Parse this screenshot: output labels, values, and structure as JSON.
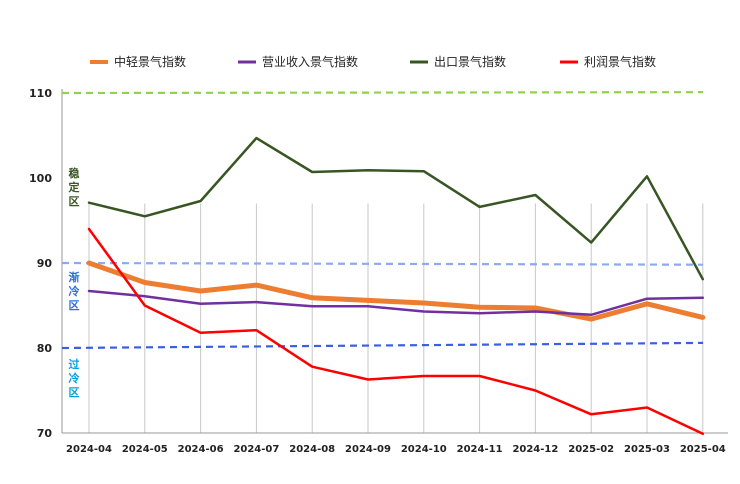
{
  "chart_data": {
    "type": "line",
    "categories": [
      "2024-04",
      "2024-05",
      "2024-06",
      "2024-07",
      "2024-08",
      "2024-09",
      "2024-10",
      "2024-11",
      "2024-12",
      "2025-02",
      "2025-03",
      "2025-04"
    ],
    "ylim": [
      70,
      110
    ],
    "yticks": [
      "70",
      "80",
      "90",
      "100",
      "110"
    ],
    "series": [
      {
        "name": "中轻景气指数",
        "color": "#ED7D31",
        "width": 5,
        "values": [
          90.0,
          87.7,
          86.7,
          87.4,
          85.9,
          85.6,
          85.3,
          84.8,
          84.7,
          83.4,
          85.2,
          83.6
        ]
      },
      {
        "name": "营业收入景气指数",
        "color": "#7030A0",
        "width": 2.5,
        "values": [
          86.7,
          86.1,
          85.2,
          85.4,
          84.9,
          84.9,
          84.3,
          84.1,
          84.3,
          83.9,
          85.8,
          85.9
        ]
      },
      {
        "name": "出口景气指数",
        "color": "#375623",
        "width": 2.5,
        "values": [
          97.1,
          95.5,
          97.3,
          104.7,
          100.7,
          100.9,
          100.8,
          96.6,
          98.0,
          92.4,
          100.2,
          88.1
        ]
      },
      {
        "name": "利润景气指数",
        "color": "#FF0000",
        "width": 2.5,
        "values": [
          94.0,
          85.0,
          81.8,
          82.1,
          77.8,
          76.3,
          76.7,
          76.7,
          75.0,
          72.2,
          73.0,
          69.9
        ]
      }
    ],
    "reference_lines": [
      {
        "color": "#92D050",
        "values": [
          110.0,
          110.1
        ]
      },
      {
        "color": "#8EA9F0",
        "values": [
          90.0,
          89.8
        ]
      },
      {
        "color": "#3B5FE0",
        "values": [
          80.0,
          80.6
        ]
      }
    ],
    "zones": [
      {
        "label": "稳定区",
        "color": "#375623"
      },
      {
        "label": "渐冷区",
        "color": "#2F6FD8"
      },
      {
        "label": "过冷区",
        "color": "#00A0E0"
      }
    ],
    "grid": "vertical",
    "legend_position": "top"
  }
}
